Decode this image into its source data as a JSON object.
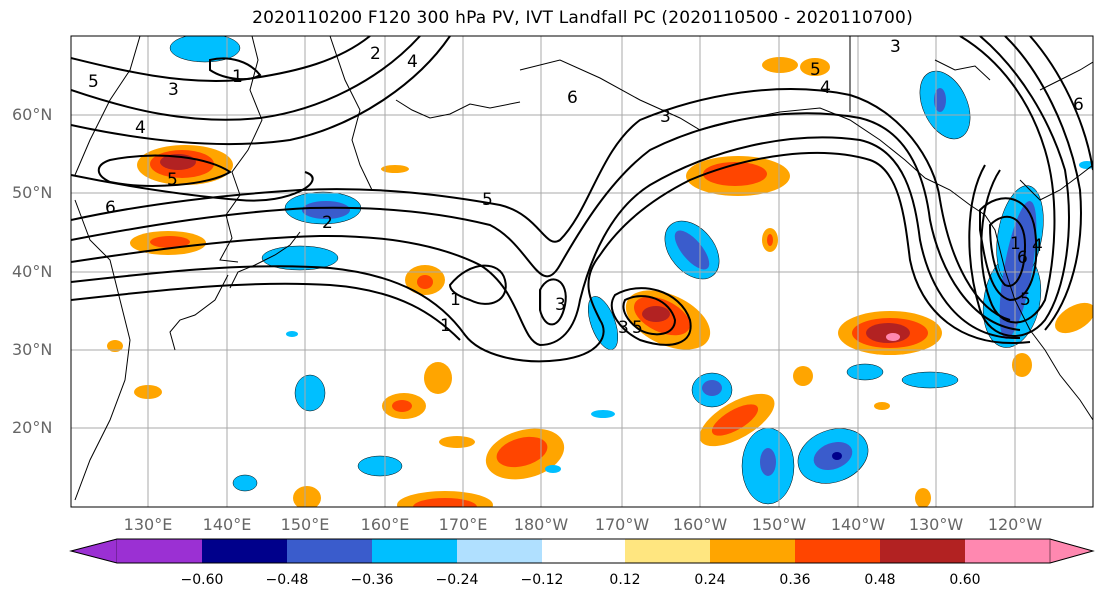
{
  "title": "2020110200 F120 300 hPa PV, IVT Landfall PC (2020110500 - 2020110700)",
  "lat_labels": [
    "60°N",
    "50°N",
    "40°N",
    "30°N",
    "20°N"
  ],
  "lon_labels": [
    "130°E",
    "140°E",
    "150°E",
    "160°E",
    "170°E",
    "180°W",
    "170°W",
    "160°W",
    "150°W",
    "140°W",
    "130°W",
    "120°W"
  ],
  "colorbar": {
    "ticks": [
      "−0.60",
      "−0.48",
      "−0.36",
      "−0.24",
      "−0.12",
      "0.12",
      "0.24",
      "0.36",
      "0.48",
      "0.60"
    ],
    "colors": [
      "#9b30d3",
      "#00008b",
      "#3a5ccc",
      "#00bfff",
      "#b0e0ff",
      "#ffffff",
      "#ffe680",
      "#ffa500",
      "#ff4500",
      "#b22222",
      "#ff88b0"
    ]
  },
  "contour_labels": [
    "5",
    "3",
    "1",
    "2",
    "4",
    "6",
    "3",
    "5",
    "5",
    "4",
    "6",
    "5",
    "2",
    "1",
    "3",
    "1",
    "3",
    "5",
    "4",
    "3",
    "6",
    "1",
    "4",
    "6",
    "5"
  ]
}
